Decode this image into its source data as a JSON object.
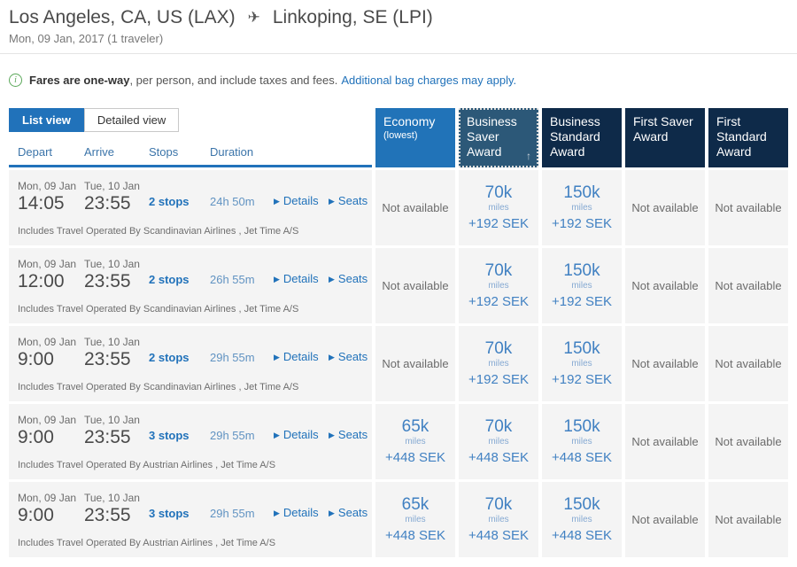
{
  "header": {
    "origin": "Los Angeles, CA, US (LAX)",
    "destination": "Linkoping, SE (LPI)",
    "subtitle": "Mon, 09 Jan, 2017 (1 traveler)"
  },
  "notice": {
    "bold": "Fares are one-way",
    "rest": ", per person, and include taxes and fees.",
    "link": "Additional bag charges may apply."
  },
  "tabs": {
    "list": "List view",
    "detailed": "Detailed view"
  },
  "columns": {
    "depart": "Depart",
    "arrive": "Arrive",
    "stops": "Stops",
    "duration": "Duration"
  },
  "fare_columns": [
    {
      "label": "Economy",
      "sub": "(lowest)",
      "economy": true,
      "selected": false
    },
    {
      "label": "Business Saver Award",
      "economy": false,
      "selected": true
    },
    {
      "label": "Business Standard Award",
      "economy": false,
      "selected": false
    },
    {
      "label": "First Saver Award",
      "economy": false,
      "selected": false
    },
    {
      "label": "First Standard Award",
      "economy": false,
      "selected": false
    }
  ],
  "labels": {
    "details": "Details",
    "seats": "Seats",
    "miles": "miles",
    "not_available": "Not available"
  },
  "icons": {
    "plane": "✈",
    "triangle": "▶",
    "sort_asc": "↑",
    "info": "i"
  },
  "rows": [
    {
      "depart_date": "Mon, 09 Jan",
      "depart_time": "14:05",
      "arrive_date": "Tue, 10 Jan",
      "arrive_time": "23:55",
      "stops": "2 stops",
      "duration": "24h 50m",
      "operated_by": "Includes Travel Operated By Scandinavian Airlines , Jet Time A/S",
      "fares": [
        null,
        {
          "miles": "70k",
          "taxes": "+192 SEK"
        },
        {
          "miles": "150k",
          "taxes": "+192 SEK"
        },
        null,
        null
      ]
    },
    {
      "depart_date": "Mon, 09 Jan",
      "depart_time": "12:00",
      "arrive_date": "Tue, 10 Jan",
      "arrive_time": "23:55",
      "stops": "2 stops",
      "duration": "26h 55m",
      "operated_by": "Includes Travel Operated By Scandinavian Airlines , Jet Time A/S",
      "fares": [
        null,
        {
          "miles": "70k",
          "taxes": "+192 SEK"
        },
        {
          "miles": "150k",
          "taxes": "+192 SEK"
        },
        null,
        null
      ]
    },
    {
      "depart_date": "Mon, 09 Jan",
      "depart_time": "9:00",
      "arrive_date": "Tue, 10 Jan",
      "arrive_time": "23:55",
      "stops": "2 stops",
      "duration": "29h 55m",
      "operated_by": "Includes Travel Operated By Scandinavian Airlines , Jet Time A/S",
      "fares": [
        null,
        {
          "miles": "70k",
          "taxes": "+192 SEK"
        },
        {
          "miles": "150k",
          "taxes": "+192 SEK"
        },
        null,
        null
      ]
    },
    {
      "depart_date": "Mon, 09 Jan",
      "depart_time": "9:00",
      "arrive_date": "Tue, 10 Jan",
      "arrive_time": "23:55",
      "stops": "3 stops",
      "duration": "29h 55m",
      "operated_by": "Includes Travel Operated By Austrian Airlines , Jet Time A/S",
      "fares": [
        {
          "miles": "65k",
          "taxes": "+448 SEK"
        },
        {
          "miles": "70k",
          "taxes": "+448 SEK"
        },
        {
          "miles": "150k",
          "taxes": "+448 SEK"
        },
        null,
        null
      ]
    },
    {
      "depart_date": "Mon, 09 Jan",
      "depart_time": "9:00",
      "arrive_date": "Tue, 10 Jan",
      "arrive_time": "23:55",
      "stops": "3 stops",
      "duration": "29h 55m",
      "operated_by": "Includes Travel Operated By Austrian Airlines , Jet Time A/S",
      "fares": [
        {
          "miles": "65k",
          "taxes": "+448 SEK"
        },
        {
          "miles": "70k",
          "taxes": "+448 SEK"
        },
        {
          "miles": "150k",
          "taxes": "+448 SEK"
        },
        null,
        null
      ]
    }
  ],
  "colors": {
    "accent": "#2172BA",
    "econ_header": "#2173B8",
    "sel_header": "#2C5878",
    "dark_header": "#0E2A49",
    "fare_blue": "#4181C2",
    "cell_bg": "#F4F4F4",
    "green": "#5BA85A"
  }
}
